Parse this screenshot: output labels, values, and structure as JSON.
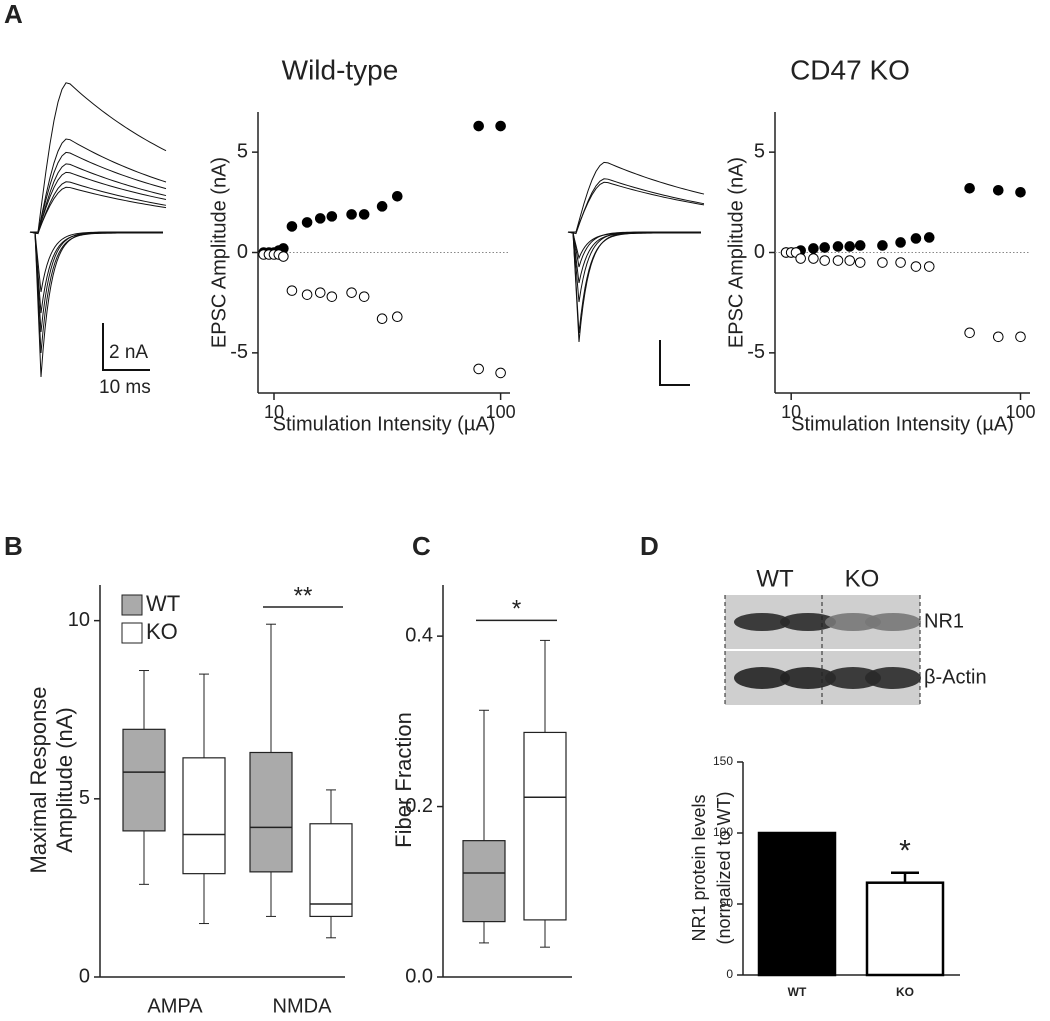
{
  "panel_labels": [
    "A",
    "B",
    "C",
    "D"
  ],
  "chart_data": [
    {
      "type": "scatter",
      "title": "Wild-type",
      "xlabel": "Stimulation Intensity (µA)",
      "ylabel": "EPSC Amplitude (nA)",
      "log_x": true,
      "x": [
        9,
        9.5,
        10,
        10.5,
        11,
        12,
        14,
        16,
        18,
        22,
        25,
        30,
        35,
        80,
        100
      ],
      "series": [
        {
          "marker": "filled",
          "color": "#000000",
          "values": [
            0,
            0,
            0,
            0.1,
            0.2,
            1.3,
            1.5,
            1.7,
            1.8,
            1.9,
            1.9,
            2.3,
            2.8,
            6.3,
            6.3
          ]
        },
        {
          "marker": "open",
          "color": "#000000",
          "values": [
            -0.1,
            -0.1,
            -0.1,
            -0.1,
            -0.2,
            -1.9,
            -2.1,
            -2.0,
            -2.2,
            -2.0,
            -2.2,
            -3.3,
            -3.2,
            -5.8,
            -6.0
          ]
        }
      ],
      "xlim": [
        8.5,
        110
      ],
      "xticks": [
        10,
        100
      ],
      "ylim": [
        -7,
        7
      ],
      "yticks": [
        -5,
        0,
        5
      ],
      "hline": 0,
      "scale_bar": {
        "y_label": "2 nA",
        "x_label": "10 ms"
      }
    },
    {
      "type": "scatter",
      "title": "CD47 KO",
      "xlabel": "Stimulation Intensity (µA)",
      "ylabel": "EPSC Amplitude (nA)",
      "log_x": true,
      "x": [
        9.5,
        10,
        10.5,
        11,
        12.5,
        14,
        16,
        18,
        20,
        25,
        30,
        35,
        40,
        60,
        80,
        100
      ],
      "series": [
        {
          "marker": "filled",
          "color": "#000000",
          "values": [
            0,
            0,
            0,
            0.1,
            0.2,
            0.25,
            0.3,
            0.3,
            0.35,
            0.35,
            0.5,
            0.7,
            0.75,
            3.2,
            3.1,
            3.0
          ]
        },
        {
          "marker": "open",
          "color": "#000000",
          "values": [
            0,
            0,
            0,
            -0.3,
            -0.3,
            -0.4,
            -0.4,
            -0.4,
            -0.5,
            -0.5,
            -0.5,
            -0.7,
            -0.7,
            -4.0,
            -4.2,
            -4.2
          ]
        }
      ],
      "xlim": [
        8.5,
        110
      ],
      "xticks": [
        10,
        100
      ],
      "ylim": [
        -7,
        7
      ],
      "yticks": [
        -5,
        0,
        5
      ],
      "hline": 0
    },
    {
      "type": "box",
      "ylabel": [
        "Maximal Response",
        "Amplitude (nA)"
      ],
      "categories": [
        "AMPA",
        "NMDA"
      ],
      "series": [
        {
          "name": "WT",
          "color": "#aaaaaa",
          "values": [
            [
              2.6,
              4.1,
              5.75,
              6.95,
              8.6
            ],
            [
              1.7,
              2.95,
              4.2,
              6.3,
              9.9
            ]
          ]
        },
        {
          "name": "KO",
          "color": "#ffffff",
          "values": [
            [
              1.5,
              2.9,
              4.0,
              6.15,
              8.5
            ],
            [
              1.1,
              1.7,
              2.05,
              4.3,
              5.25
            ]
          ]
        }
      ],
      "ylim": [
        0,
        11
      ],
      "yticks": [
        0,
        5,
        10
      ],
      "legend": "upper left",
      "significance": [
        {
          "category": 1,
          "label": "**"
        }
      ]
    },
    {
      "type": "box",
      "ylabel": [
        "Fiber Fraction"
      ],
      "categories": [
        null
      ],
      "series": [
        {
          "color": "#aaaaaa",
          "values": [
            [
              0.04,
              0.065,
              0.122,
              0.16,
              0.313
            ]
          ]
        },
        {
          "color": "#ffffff",
          "values": [
            [
              0.035,
              0.067,
              0.211,
              0.287,
              0.395
            ]
          ]
        }
      ],
      "ylim": [
        0,
        0.46
      ],
      "yticks": [
        {
          "value": 0,
          "label": "0.0"
        },
        0.2,
        0.4
      ],
      "significance": [
        {
          "category": 0,
          "label": "*"
        }
      ]
    },
    {
      "type": "bar",
      "blot": {
        "lanes": [
          "WT",
          "KO"
        ],
        "bands": [
          "NR1",
          "β-Actin"
        ]
      },
      "ylabel": [
        "NR1 protein levels",
        "(normalized to WT)"
      ],
      "categories": [
        "WT",
        "KO"
      ],
      "values": [
        100,
        65
      ],
      "errors": [
        null,
        7
      ],
      "colors": [
        "#000000",
        "#ffffff"
      ],
      "ylim": [
        0,
        150
      ],
      "yticks": [
        0,
        50,
        100,
        150
      ],
      "significance": [
        {
          "category": 1,
          "label": "*"
        }
      ]
    }
  ]
}
